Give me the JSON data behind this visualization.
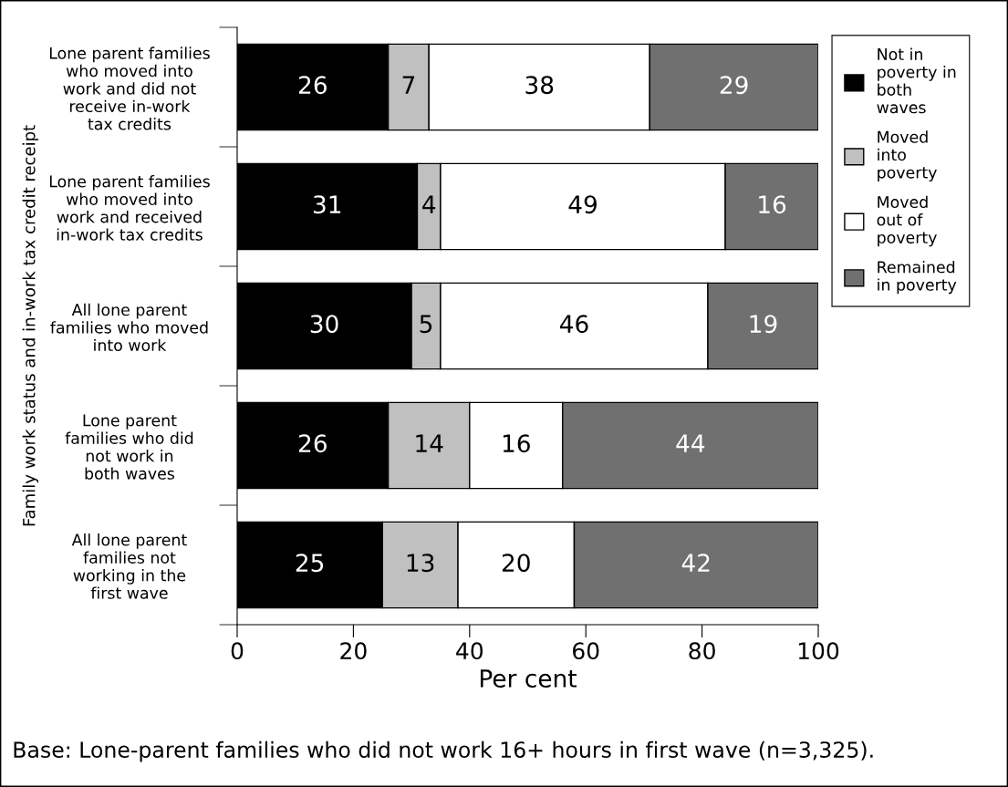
{
  "chart_data": {
    "type": "bar",
    "orientation": "horizontal",
    "stacked": true,
    "categories": [
      "Lone parent families\nwho moved into\nwork and did not\nreceive in-work\ntax credits",
      "Lone parent families\nwho moved into\nwork and received\nin-work tax credits",
      "All lone parent\nfamilies who moved\ninto work",
      "Lone parent\nfamilies who did\nnot work in\nboth waves",
      "All lone parent\nfamilies not\nworking in the\nfirst wave"
    ],
    "series": [
      {
        "name": "Not in\npoverty in\nboth\nwaves",
        "color": "#000000",
        "values": [
          26,
          31,
          30,
          26,
          25
        ]
      },
      {
        "name": "Moved\ninto\npoverty",
        "color": "#c0c0c0",
        "values": [
          7,
          4,
          5,
          14,
          13
        ]
      },
      {
        "name": "Moved\nout of\npoverty",
        "color": "#ffffff",
        "values": [
          38,
          49,
          46,
          16,
          20
        ]
      },
      {
        "name": "Remained\nin poverty",
        "color": "#707070",
        "values": [
          29,
          16,
          19,
          44,
          42
        ]
      }
    ],
    "xlim": [
      0,
      100
    ],
    "xticks": [
      0,
      20,
      40,
      60,
      80,
      100
    ],
    "xlabel": "Per cent",
    "ylabel": "Family work status and in-work tax credit receipt",
    "data_labels": true,
    "legend": "right",
    "grid": false,
    "annotations": [
      "Base: Lone-parent families who did not work 16+ hours in first wave (n=3,325)."
    ]
  }
}
